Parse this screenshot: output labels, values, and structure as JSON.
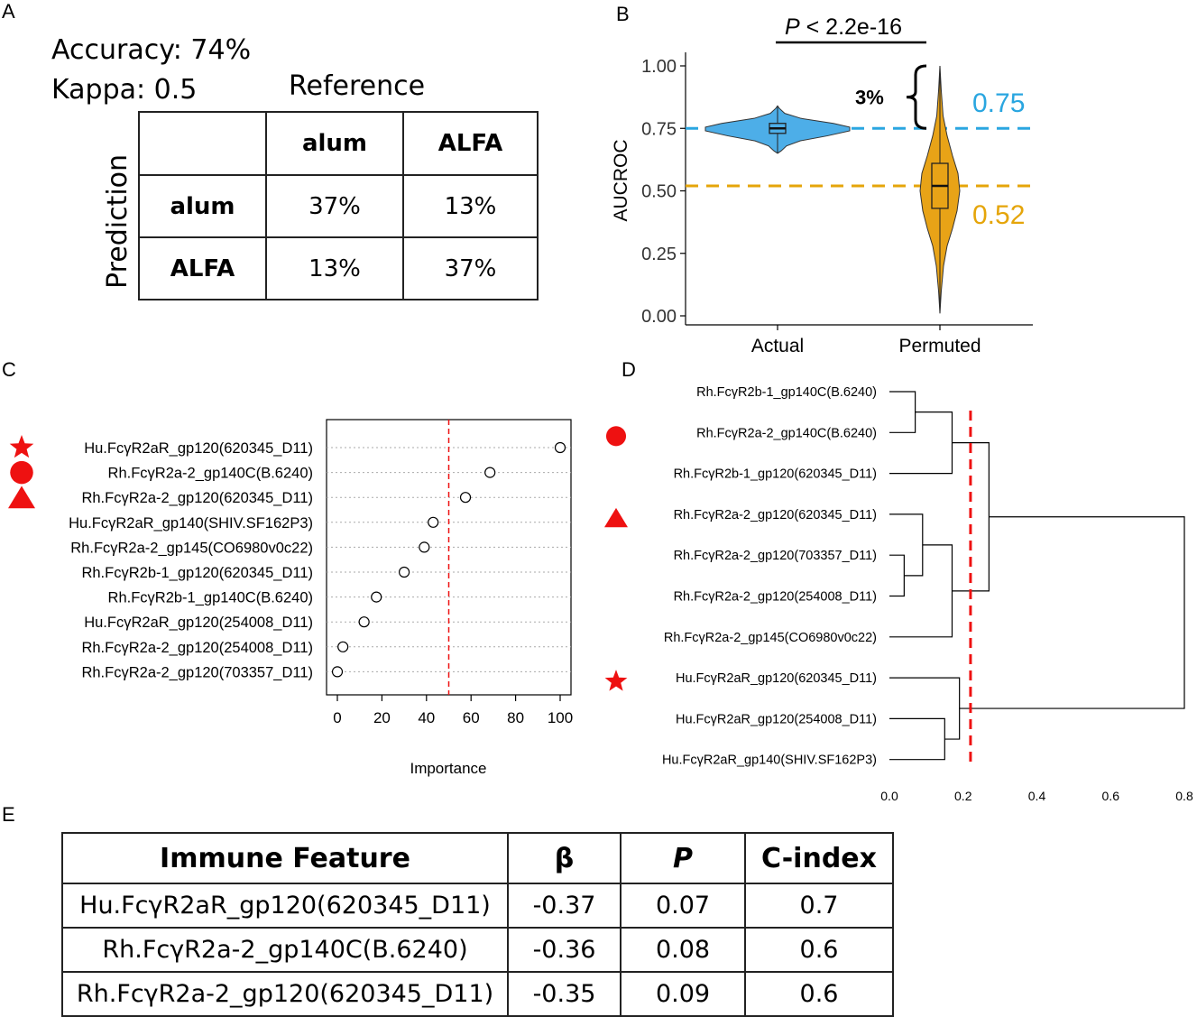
{
  "panels": {
    "a": "A",
    "b": "B",
    "c": "C",
    "d": "D",
    "e": "E"
  },
  "panel_a": {
    "accuracy": "Accuracy: 74%",
    "kappa": "Kappa: 0.5",
    "reference": "Reference",
    "prediction": "Prediction",
    "col_headers": [
      "alum",
      "ALFA"
    ],
    "rows": [
      {
        "label": "alum",
        "values": [
          "37%",
          "13%"
        ]
      },
      {
        "label": "ALFA",
        "values": [
          "13%",
          "37%"
        ]
      }
    ]
  },
  "chart_data": [
    {
      "type": "violin",
      "panel": "B",
      "ylabel": "AUCROC",
      "categories": [
        "Actual",
        "Permuted"
      ],
      "ylim": [
        0,
        1
      ],
      "yticks": [
        "0.00",
        "0.25",
        "0.50",
        "0.75",
        "1.00"
      ],
      "series": [
        {
          "name": "Actual",
          "color": "#4daee8",
          "median": 0.75,
          "q1": 0.73,
          "q3": 0.77,
          "min": 0.65,
          "max": 0.84
        },
        {
          "name": "Permuted",
          "color": "#e8a317",
          "median": 0.52,
          "q1": 0.43,
          "q3": 0.61,
          "min": 0.01,
          "max": 1.0
        }
      ],
      "hlines": [
        {
          "value": 0.75,
          "label": "0.75",
          "color": "#2aa6e0"
        },
        {
          "value": 0.52,
          "label": "0.52",
          "color": "#e5a50a"
        }
      ],
      "significance": "P < 2.2e-16",
      "bracket_label": "3%"
    },
    {
      "type": "dot",
      "panel": "C",
      "xlabel": "Importance",
      "xlim": [
        0,
        100
      ],
      "xticks": [
        "0",
        "20",
        "40",
        "60",
        "80",
        "100"
      ],
      "threshold": 50,
      "features": [
        {
          "label": "Hu.FcγR2aR_gp120(620345_D11)",
          "value": 100,
          "marker": "star"
        },
        {
          "label": "Rh.FcγR2a-2_gp140C(B.6240)",
          "value": 68.5,
          "marker": "circle"
        },
        {
          "label": "Rh.FcγR2a-2_gp120(620345_D11)",
          "value": 57.5,
          "marker": "triangle"
        },
        {
          "label": "Hu.FcγR2aR_gp140(SHIV.SF162P3)",
          "value": 43,
          "marker": ""
        },
        {
          "label": "Rh.FcγR2a-2_gp145(CO6980v0c22)",
          "value": 39,
          "marker": ""
        },
        {
          "label": "Rh.FcγR2b-1_gp120(620345_D11)",
          "value": 30,
          "marker": ""
        },
        {
          "label": "Rh.FcγR2b-1_gp140C(B.6240)",
          "value": 17.5,
          "marker": ""
        },
        {
          "label": "Hu.FcγR2aR_gp120(254008_D11)",
          "value": 12,
          "marker": ""
        },
        {
          "label": "Rh.FcγR2a-2_gp120(254008_D11)",
          "value": 2.5,
          "marker": ""
        },
        {
          "label": "Rh.FcγR2a-2_gp120(703357_D11)",
          "value": 0,
          "marker": ""
        }
      ]
    },
    {
      "type": "dendrogram",
      "panel": "D",
      "xlim": [
        0,
        0.8
      ],
      "xticks": [
        "0.0",
        "0.2",
        "0.4",
        "0.6",
        "0.8"
      ],
      "cut_height": 0.22,
      "leaves": [
        {
          "label": "Rh.FcγR2b-1_gp140C(B.6240)",
          "marker": ""
        },
        {
          "label": "Rh.FcγR2a-2_gp140C(B.6240)",
          "marker": "circle"
        },
        {
          "label": "Rh.FcγR2b-1_gp120(620345_D11)",
          "marker": ""
        },
        {
          "label": "Rh.FcγR2a-2_gp120(620345_D11)",
          "marker": "triangle"
        },
        {
          "label": "Rh.FcγR2a-2_gp120(703357_D11)",
          "marker": ""
        },
        {
          "label": "Rh.FcγR2a-2_gp120(254008_D11)",
          "marker": ""
        },
        {
          "label": "Rh.FcγR2a-2_gp145(CO6980v0c22)",
          "marker": ""
        },
        {
          "label": "Hu.FcγR2aR_gp120(620345_D11)",
          "marker": "star"
        },
        {
          "label": "Hu.FcγR2aR_gp120(254008_D11)",
          "marker": ""
        },
        {
          "label": "Hu.FcγR2aR_gp140(SHIV.SF162P3)",
          "marker": ""
        }
      ],
      "merges": [
        {
          "a": 0,
          "b": 1,
          "height": 0.07
        },
        {
          "a": 10,
          "b": 2,
          "height": 0.17
        },
        {
          "a": 4,
          "b": 5,
          "height": 0.04
        },
        {
          "a": 3,
          "b": 12,
          "height": 0.09
        },
        {
          "a": 13,
          "b": 6,
          "height": 0.17
        },
        {
          "a": 11,
          "b": 14,
          "height": 0.27
        },
        {
          "a": 8,
          "b": 9,
          "height": 0.15
        },
        {
          "a": 7,
          "b": 16,
          "height": 0.19
        },
        {
          "a": 15,
          "b": 17,
          "height": 0.8
        }
      ]
    }
  ],
  "panel_e": {
    "headers": {
      "feature": "Immune Feature",
      "beta": "β",
      "p": "P",
      "cindex": "C-index"
    },
    "rows": [
      {
        "feature": "Hu.FcγR2aR_gp120(620345_D11)",
        "beta": "-0.37",
        "p": "0.07",
        "cindex": "0.7"
      },
      {
        "feature": "Rh.FcγR2a-2_gp140C(B.6240)",
        "beta": "-0.36",
        "p": "0.08",
        "cindex": "0.6"
      },
      {
        "feature": "Rh.FcγR2a-2_gp120(620345_D11)",
        "beta": "-0.35",
        "p": "0.09",
        "cindex": "0.6"
      }
    ]
  }
}
